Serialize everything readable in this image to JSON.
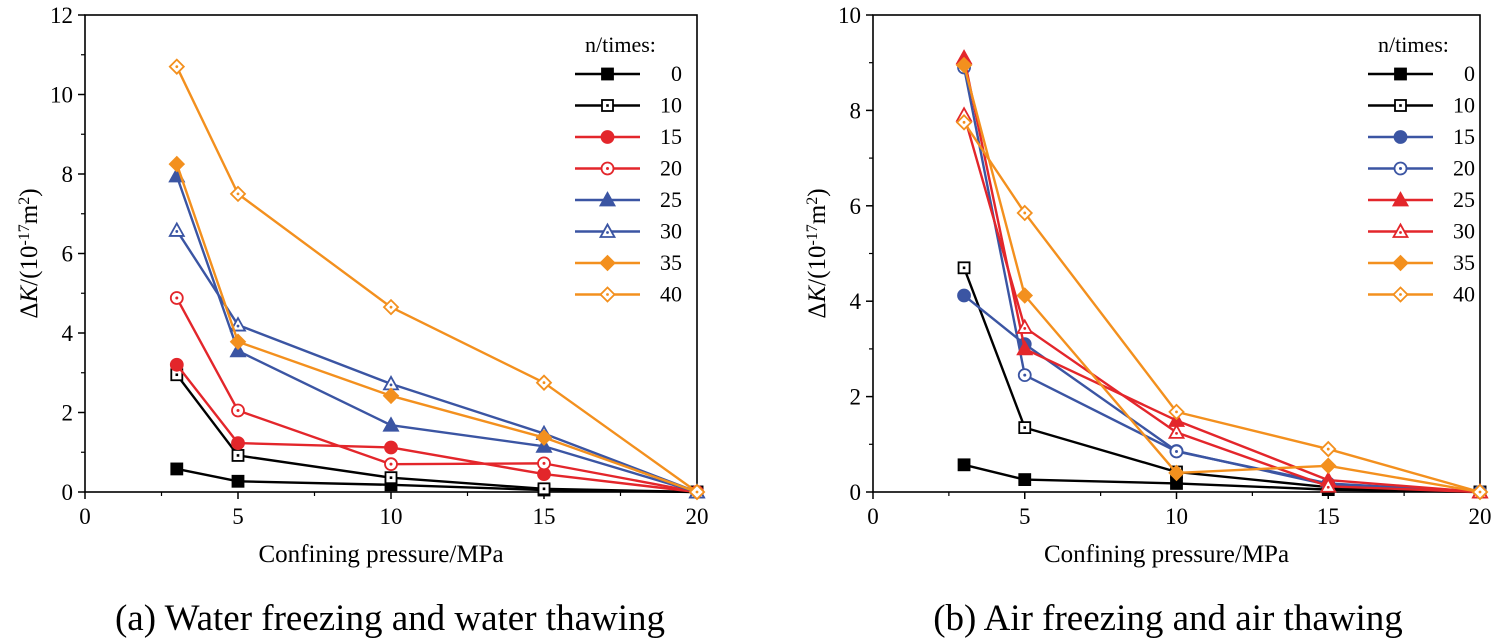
{
  "chart_data": [
    {
      "type": "line",
      "caption": "(a) Water freezing and water thawing",
      "xlabel": "Confining pressure/MPa",
      "ylabel": {
        "delta": "Δ",
        "var": "K",
        "rest": "/(10",
        "exp": "-17",
        "unit": "m",
        "unit_exp": "2",
        "close": ")"
      },
      "xlim": [
        0,
        20
      ],
      "ylim": [
        0,
        12
      ],
      "xticks": [
        0,
        5,
        10,
        15,
        20
      ],
      "yticks": [
        0,
        2,
        4,
        6,
        8,
        10,
        12
      ],
      "x": [
        3,
        5,
        10,
        15,
        20
      ],
      "legend_title": "n/times:",
      "legend_position": "top-right",
      "series": [
        {
          "name": "0",
          "values": [
            0.58,
            0.27,
            0.18,
            0.05,
            0
          ],
          "color": "#000000",
          "marker": "square",
          "filled": true
        },
        {
          "name": "10",
          "values": [
            2.95,
            0.92,
            0.36,
            0.08,
            0
          ],
          "color": "#000000",
          "marker": "square",
          "filled": false
        },
        {
          "name": "15",
          "values": [
            3.2,
            1.23,
            1.12,
            0.45,
            0
          ],
          "color": "#e3262b",
          "marker": "circle",
          "filled": true
        },
        {
          "name": "20",
          "values": [
            4.88,
            2.05,
            0.7,
            0.72,
            0
          ],
          "color": "#e3262b",
          "marker": "circle",
          "filled": false
        },
        {
          "name": "25",
          "values": [
            7.95,
            3.55,
            1.68,
            1.15,
            0
          ],
          "color": "#3b55a3",
          "marker": "triangle",
          "filled": true
        },
        {
          "name": "30",
          "values": [
            6.58,
            4.2,
            2.72,
            1.47,
            0
          ],
          "color": "#3b55a3",
          "marker": "triangle",
          "filled": false
        },
        {
          "name": "35",
          "values": [
            8.25,
            3.78,
            2.42,
            1.37,
            0
          ],
          "color": "#f3901e",
          "marker": "diamond",
          "filled": true
        },
        {
          "name": "40",
          "values": [
            10.7,
            7.5,
            4.65,
            2.75,
            0
          ],
          "color": "#f3901e",
          "marker": "diamond",
          "filled": false
        }
      ]
    },
    {
      "type": "line",
      "caption": "(b) Air freezing and air thawing",
      "xlabel": "Confining pressure/MPa",
      "ylabel": {
        "delta": "Δ",
        "var": "K",
        "rest": "/(10",
        "exp": "-17",
        "unit": "m",
        "unit_exp": "2",
        "close": ")"
      },
      "xlim": [
        0,
        20
      ],
      "ylim": [
        0,
        10
      ],
      "xticks": [
        0,
        5,
        10,
        15,
        20
      ],
      "yticks": [
        0,
        2,
        4,
        6,
        8,
        10
      ],
      "x": [
        3,
        5,
        10,
        15,
        20
      ],
      "legend_title": "n/times:",
      "legend_position": "top-right",
      "series": [
        {
          "name": "0",
          "values": [
            0.57,
            0.26,
            0.18,
            0.05,
            0
          ],
          "color": "#000000",
          "marker": "square",
          "filled": true
        },
        {
          "name": "10",
          "values": [
            4.7,
            1.35,
            0.42,
            0.1,
            0
          ],
          "color": "#000000",
          "marker": "square",
          "filled": false
        },
        {
          "name": "15",
          "values": [
            4.12,
            3.1,
            0.86,
            0.15,
            0
          ],
          "color": "#3b55a3",
          "marker": "circle",
          "filled": true
        },
        {
          "name": "20",
          "values": [
            8.9,
            2.45,
            0.85,
            0.18,
            0
          ],
          "color": "#3b55a3",
          "marker": "circle",
          "filled": false
        },
        {
          "name": "25",
          "values": [
            9.1,
            3.0,
            1.5,
            0.25,
            0
          ],
          "color": "#e3262b",
          "marker": "triangle",
          "filled": true
        },
        {
          "name": "30",
          "values": [
            7.9,
            3.45,
            1.25,
            0.12,
            0
          ],
          "color": "#e3262b",
          "marker": "triangle",
          "filled": false
        },
        {
          "name": "35",
          "values": [
            8.95,
            4.12,
            0.4,
            0.55,
            0
          ],
          "color": "#f3901e",
          "marker": "diamond",
          "filled": true
        },
        {
          "name": "40",
          "values": [
            7.75,
            5.85,
            1.68,
            0.9,
            0
          ],
          "color": "#f3901e",
          "marker": "diamond",
          "filled": false
        }
      ]
    }
  ]
}
